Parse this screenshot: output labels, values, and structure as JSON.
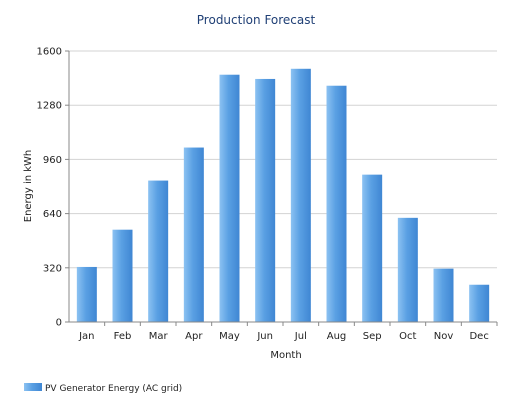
{
  "chart_data": {
    "type": "bar",
    "title": "Production Forecast",
    "xlabel": "Month",
    "ylabel": "Energy in kWh",
    "categories": [
      "Jan",
      "Feb",
      "Mar",
      "Apr",
      "May",
      "Jun",
      "Jul",
      "Aug",
      "Sep",
      "Oct",
      "Nov",
      "Dec"
    ],
    "series": [
      {
        "name": "PV Generator Energy (AC grid)",
        "values": [
          325,
          545,
          835,
          1030,
          1460,
          1435,
          1495,
          1395,
          870,
          615,
          315,
          220
        ]
      }
    ],
    "yticks": [
      "0",
      "320",
      "640",
      "960",
      "1280",
      "1600"
    ],
    "ylim": [
      0,
      1600
    ],
    "grid": true,
    "legend_position": "bottom-left",
    "colors": {
      "bar": "#5aa0e3",
      "bar_light": "#8cc2f2",
      "bar_dark": "#3f86d3",
      "grid": "#d3d3d3",
      "title": "#1f3f75"
    }
  }
}
